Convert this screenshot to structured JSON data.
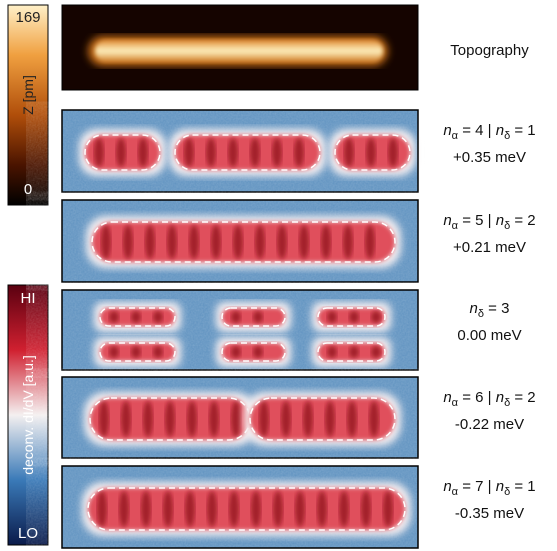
{
  "colorbars": [
    {
      "max": 169,
      "label": "Z [pm]",
      "min": 0
    },
    {
      "high": "HI",
      "label": "deconv. dI/dV [a.u.]",
      "low": "LO"
    }
  ],
  "panels": [
    {
      "label": "Topography"
    },
    {
      "terms": [
        {
          "symbol": "n",
          "subscript": "α",
          "value": "= 4"
        },
        {
          "symbol": "n",
          "subscript": "δ",
          "value": "= 1"
        }
      ],
      "separator": "|",
      "energy": "+0.35 meV"
    },
    {
      "terms": [
        {
          "symbol": "n",
          "subscript": "α",
          "value": "= 5"
        },
        {
          "symbol": "n",
          "subscript": "δ",
          "value": "= 2"
        }
      ],
      "separator": "|",
      "energy": "+0.21 meV"
    },
    {
      "terms": [
        {
          "symbol": "n",
          "subscript": "δ",
          "value": "= 3"
        }
      ],
      "energy": "0.00 meV"
    },
    {
      "terms": [
        {
          "symbol": "n",
          "subscript": "α",
          "value": "= 6"
        },
        {
          "symbol": "n",
          "subscript": "δ",
          "value": "= 2"
        }
      ],
      "separator": "|",
      "energy": "-0.22 meV"
    },
    {
      "terms": [
        {
          "symbol": "n",
          "subscript": "α",
          "value": "= 7"
        },
        {
          "symbol": "n",
          "subscript": "δ",
          "value": "= 1"
        }
      ],
      "separator": "|",
      "energy": "-0.35 meV"
    }
  ]
}
